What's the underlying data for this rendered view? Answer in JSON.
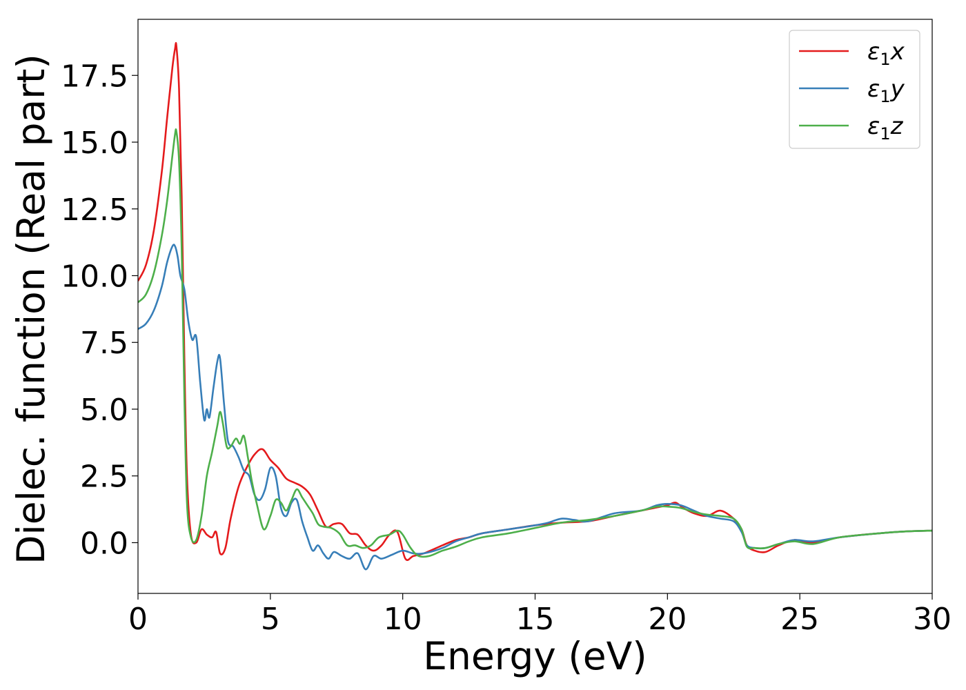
{
  "chart_data": {
    "type": "line",
    "xlabel": "Energy (eV)",
    "ylabel": "Dielec. function (Real part)",
    "xlim": [
      0,
      30
    ],
    "ylim": [
      -1.9,
      19.6
    ],
    "xticks": [
      0,
      5,
      10,
      15,
      20,
      25,
      30
    ],
    "xtick_labels": [
      "0",
      "5",
      "10",
      "15",
      "20",
      "25",
      "30"
    ],
    "yticks": [
      0.0,
      2.5,
      5.0,
      7.5,
      10.0,
      12.5,
      15.0,
      17.5
    ],
    "ytick_labels": [
      "0.0",
      "2.5",
      "5.0",
      "7.5",
      "10.0",
      "12.5",
      "15.0",
      "17.5"
    ],
    "grid": false,
    "legend_position": "top-right",
    "series": [
      {
        "name": "ε₁x",
        "legend_base": "ε",
        "legend_sub": "1",
        "legend_suffix": "x",
        "color": "#e41a1c",
        "x": [
          0,
          0.3,
          0.6,
          0.9,
          1.1,
          1.3,
          1.4,
          1.45,
          1.55,
          1.65,
          1.75,
          1.85,
          2.0,
          2.2,
          2.4,
          2.6,
          2.8,
          2.95,
          3.1,
          3.3,
          3.5,
          3.8,
          4.1,
          4.4,
          4.7,
          5.0,
          5.3,
          5.6,
          5.9,
          6.2,
          6.5,
          6.8,
          7.1,
          7.4,
          7.7,
          8.0,
          8.3,
          8.6,
          8.9,
          9.2,
          9.5,
          9.8,
          10.1,
          10.4,
          10.8,
          11.5,
          12.0,
          12.5,
          13.0,
          14.0,
          15.0,
          16.0,
          17.0,
          18.0,
          19.0,
          19.5,
          20.0,
          20.3,
          20.6,
          21.0,
          21.5,
          22.0,
          22.5,
          22.8,
          23.0,
          23.3,
          23.7,
          24.2,
          24.8,
          25.5,
          26.5,
          28.0,
          29.0,
          30.0
        ],
        "y": [
          9.8,
          10.4,
          11.7,
          13.9,
          15.9,
          17.8,
          18.5,
          18.6,
          17.0,
          13.0,
          7.0,
          2.5,
          0.3,
          0.0,
          0.5,
          0.3,
          0.2,
          0.4,
          -0.4,
          -0.2,
          0.9,
          2.1,
          2.8,
          3.3,
          3.5,
          3.1,
          2.8,
          2.4,
          2.25,
          2.1,
          1.8,
          1.2,
          0.6,
          0.7,
          0.7,
          0.35,
          0.3,
          -0.1,
          -0.3,
          -0.1,
          0.3,
          0.4,
          -0.6,
          -0.5,
          -0.4,
          -0.1,
          0.1,
          0.2,
          0.35,
          0.5,
          0.65,
          0.75,
          0.8,
          1.0,
          1.2,
          1.3,
          1.4,
          1.5,
          1.3,
          1.1,
          1.0,
          1.2,
          0.9,
          0.5,
          -0.1,
          -0.3,
          -0.35,
          -0.1,
          0.1,
          0.0,
          0.2,
          0.35,
          0.42,
          0.45
        ]
      },
      {
        "name": "ε₁y",
        "legend_base": "ε",
        "legend_sub": "1",
        "legend_suffix": "y",
        "color": "#377eb8",
        "x": [
          0,
          0.3,
          0.6,
          0.9,
          1.1,
          1.3,
          1.4,
          1.5,
          1.6,
          1.75,
          1.9,
          2.05,
          2.2,
          2.35,
          2.5,
          2.6,
          2.7,
          2.85,
          3.0,
          3.1,
          3.25,
          3.4,
          3.6,
          3.8,
          4.0,
          4.2,
          4.4,
          4.6,
          4.8,
          5.0,
          5.2,
          5.4,
          5.6,
          5.8,
          6.0,
          6.2,
          6.4,
          6.6,
          6.8,
          7.0,
          7.2,
          7.4,
          7.7,
          8.0,
          8.3,
          8.6,
          8.9,
          9.2,
          9.6,
          10.0,
          10.4,
          10.8,
          11.5,
          12.0,
          12.5,
          13.0,
          14.0,
          15.0,
          15.5,
          16.0,
          16.5,
          17.0,
          18.0,
          19.0,
          19.6,
          20.0,
          20.5,
          21.0,
          21.5,
          22.0,
          22.5,
          22.8,
          23.0,
          23.3,
          23.7,
          24.2,
          24.8,
          25.5,
          26.5,
          28.0,
          29.0,
          30.0
        ],
        "y": [
          8.0,
          8.2,
          8.7,
          9.6,
          10.5,
          11.1,
          11.1,
          10.7,
          10.0,
          9.5,
          8.3,
          7.6,
          7.7,
          6.0,
          4.6,
          5.0,
          4.7,
          5.8,
          6.8,
          6.9,
          5.2,
          3.8,
          3.6,
          3.2,
          2.7,
          2.5,
          1.8,
          1.6,
          2.0,
          2.8,
          2.5,
          1.3,
          1.0,
          1.5,
          1.6,
          0.8,
          0.2,
          -0.3,
          -0.1,
          -0.4,
          -0.6,
          -0.35,
          -0.5,
          -0.6,
          -0.4,
          -1.0,
          -0.5,
          -0.6,
          -0.45,
          -0.3,
          -0.4,
          -0.4,
          -0.2,
          0.05,
          0.2,
          0.35,
          0.5,
          0.65,
          0.75,
          0.9,
          0.85,
          0.8,
          1.1,
          1.2,
          1.4,
          1.45,
          1.4,
          1.2,
          1.0,
          0.9,
          0.8,
          0.4,
          -0.1,
          -0.2,
          -0.2,
          -0.05,
          0.1,
          0.05,
          0.2,
          0.35,
          0.42,
          0.45
        ]
      },
      {
        "name": "ε₁z",
        "legend_base": "ε",
        "legend_sub": "1",
        "legend_suffix": "z",
        "color": "#4daf4a",
        "x": [
          0,
          0.3,
          0.6,
          0.9,
          1.1,
          1.3,
          1.4,
          1.45,
          1.55,
          1.65,
          1.75,
          1.85,
          2.0,
          2.2,
          2.4,
          2.6,
          2.8,
          3.0,
          3.1,
          3.2,
          3.35,
          3.5,
          3.7,
          3.85,
          4.0,
          4.15,
          4.3,
          4.5,
          4.75,
          5.0,
          5.2,
          5.4,
          5.6,
          5.8,
          6.0,
          6.2,
          6.4,
          6.6,
          6.8,
          7.0,
          7.3,
          7.6,
          7.9,
          8.2,
          8.5,
          8.8,
          9.1,
          9.5,
          9.8,
          10.0,
          10.3,
          10.6,
          11.0,
          11.5,
          12.0,
          12.5,
          13.0,
          14.0,
          15.0,
          16.0,
          17.0,
          18.0,
          19.0,
          19.6,
          20.0,
          20.5,
          21.0,
          21.5,
          22.0,
          22.5,
          22.8,
          23.0,
          23.3,
          23.7,
          24.2,
          24.8,
          25.5,
          26.5,
          28.0,
          29.0,
          30.0
        ],
        "y": [
          9.0,
          9.3,
          10.1,
          11.5,
          12.8,
          14.5,
          15.3,
          15.4,
          14.3,
          11.0,
          5.5,
          1.5,
          0.2,
          0.1,
          1.0,
          2.5,
          3.4,
          4.4,
          4.9,
          4.5,
          3.6,
          3.6,
          3.9,
          3.7,
          4.0,
          3.2,
          2.3,
          1.4,
          0.5,
          1.0,
          1.6,
          1.5,
          1.2,
          1.6,
          2.0,
          1.7,
          1.4,
          1.1,
          0.7,
          0.6,
          0.55,
          0.35,
          -0.1,
          -0.1,
          -0.2,
          -0.1,
          0.2,
          0.3,
          0.45,
          0.3,
          -0.2,
          -0.5,
          -0.5,
          -0.3,
          -0.15,
          0.05,
          0.2,
          0.35,
          0.55,
          0.75,
          0.85,
          1.0,
          1.2,
          1.35,
          1.35,
          1.3,
          1.15,
          1.05,
          1.0,
          0.9,
          0.5,
          -0.15,
          -0.2,
          -0.2,
          -0.05,
          0.05,
          -0.05,
          0.2,
          0.35,
          0.42,
          0.45
        ]
      }
    ]
  }
}
